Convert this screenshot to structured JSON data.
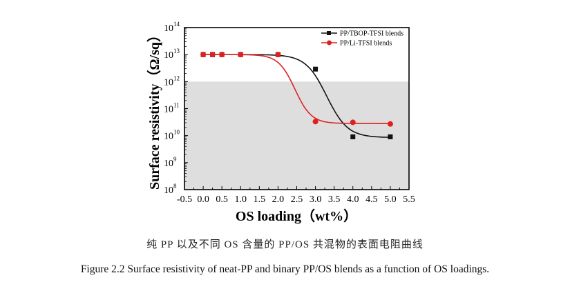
{
  "chart_data": {
    "type": "scatter",
    "title": "",
    "xlabel": "OS loading（wt%）",
    "ylabel": "Surface resistivity（Ω/sq）",
    "xlim": [
      -0.5,
      5.5
    ],
    "ylim": [
      100000000.0,
      100000000000000.0
    ],
    "yscale": "log",
    "x_ticks": [
      "-0.5",
      "0.0",
      "0.5",
      "1.0",
      "1.5",
      "2.0",
      "2.5",
      "3.0",
      "3.5",
      "4.0",
      "4.5",
      "5.0",
      "5.5"
    ],
    "y_ticks": [
      {
        "base": "10",
        "exp": "14"
      },
      {
        "base": "10",
        "exp": "13"
      },
      {
        "base": "10",
        "exp": "12"
      },
      {
        "base": "10",
        "exp": "11"
      },
      {
        "base": "10",
        "exp": "10"
      },
      {
        "base": "10",
        "exp": "9"
      },
      {
        "base": "10",
        "exp": "8"
      }
    ],
    "shaded_region": {
      "y_from": 100000000.0,
      "y_to": 1000000000000.0,
      "color": "#dedede"
    },
    "legend_position": "top-right",
    "series": [
      {
        "name": "PP/TBOP-TFSI blends",
        "color": "#111111",
        "marker": "square",
        "x": [
          0,
          0.25,
          0.5,
          1.0,
          2.0,
          3.0,
          4.0,
          5.0
        ],
        "y": [
          10000000000000.0,
          10000000000000.0,
          10000000000000.0,
          10000000000000.0,
          10000000000000.0,
          2900000000000.0,
          9000000000.0,
          9000000000.0
        ],
        "fit_curve": {
          "upper": 10000000000000.0,
          "lower": 8500000000.0,
          "x0": 3.3,
          "width": 0.28
        }
      },
      {
        "name": "PP/Li-TFSI blends",
        "color": "#e02020",
        "marker": "circle",
        "x": [
          0,
          0.25,
          0.5,
          1.0,
          2.0,
          3.0,
          4.0,
          5.0
        ],
        "y": [
          10000000000000.0,
          10000000000000.0,
          10000000000000.0,
          10000000000000.0,
          10000000000000.0,
          33000000000.0,
          31000000000.0,
          27000000000.0
        ],
        "fit_curve": {
          "upper": 10000000000000.0,
          "lower": 28000000000.0,
          "x0": 2.45,
          "width": 0.22
        }
      }
    ]
  },
  "captions": {
    "chinese": "纯 PP 以及不同 OS 含量的 PP/OS 共混物的表面电阻曲线",
    "english": "Figure 2.2 Surface resistivity of neat-PP and binary PP/OS blends as a function of OS loadings."
  }
}
